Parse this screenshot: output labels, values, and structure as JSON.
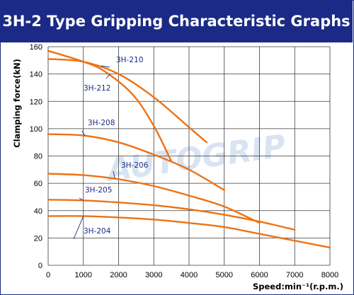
{
  "header": {
    "title": "3H-2 Type Gripping Characteristic Graphs"
  },
  "watermark": "AUTOGRIP",
  "chart_data": {
    "type": "line",
    "title": "3H-2 Type Gripping Characteristic Graphs",
    "xlabel": "Speed:min⁻¹(r.p.m.)",
    "ylabel": "Clamping force(kN)",
    "xlim": [
      0,
      8000
    ],
    "ylim": [
      0,
      160
    ],
    "xticks": [
      0,
      1000,
      2000,
      3000,
      4000,
      5000,
      6000,
      7000,
      8000
    ],
    "yticks": [
      0,
      20,
      40,
      60,
      80,
      100,
      120,
      140,
      160
    ],
    "grid": true,
    "line_color": "#ee7214",
    "series": [
      {
        "name": "3H-210",
        "x": [
          0,
          1000,
          2000,
          3000,
          4000,
          4500
        ],
        "y": [
          151,
          149,
          140,
          123,
          101,
          90
        ]
      },
      {
        "name": "3H-212",
        "x": [
          0,
          1000,
          1600,
          2400,
          3000,
          3500
        ],
        "y": [
          157,
          149,
          142,
          125,
          102,
          76
        ]
      },
      {
        "name": "3H-208",
        "x": [
          0,
          1000,
          2000,
          3000,
          4000,
          5000
        ],
        "y": [
          96,
          95,
          90,
          81,
          70,
          55
        ]
      },
      {
        "name": "3H-206",
        "x": [
          0,
          1000,
          2000,
          3000,
          4000,
          5000,
          6000
        ],
        "y": [
          67,
          66,
          63,
          58,
          51,
          43,
          31
        ]
      },
      {
        "name": "3H-205",
        "x": [
          0,
          1000,
          2000,
          3000,
          4000,
          5000,
          6000,
          7000
        ],
        "y": [
          48,
          47.5,
          46,
          44,
          41,
          37,
          32,
          26
        ]
      },
      {
        "name": "3H-204",
        "x": [
          0,
          1000,
          2000,
          3000,
          4000,
          5000,
          6000,
          7000,
          8000
        ],
        "y": [
          36,
          36,
          35,
          33.5,
          31,
          28,
          23,
          18,
          13
        ]
      }
    ]
  }
}
